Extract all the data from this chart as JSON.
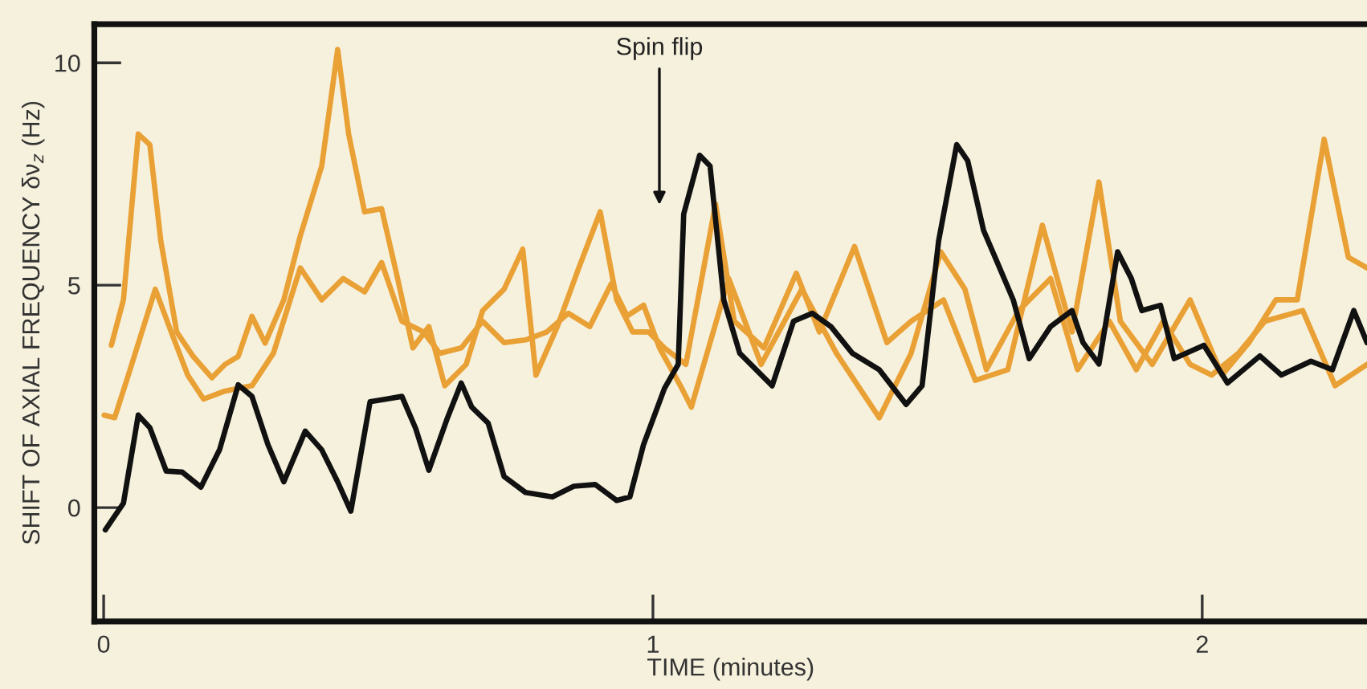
{
  "chart_data": {
    "type": "line",
    "xlabel": "TIME (minutes)",
    "ylabel": "SHIFT OF AXIAL FREQUENCY δν$_{z}$ (Hz)",
    "xlim": [
      -0.017,
      2.3
    ],
    "ylim": [
      -2.56,
      10.87
    ],
    "xticks": [
      0,
      1,
      2
    ],
    "yticks": [
      0,
      5,
      10
    ],
    "grid": false,
    "legend": false,
    "marker": "none",
    "line_style": "solid",
    "annotations": [
      "Spin flip"
    ],
    "series": [
      {
        "color": "#e9a035",
        "x": [
          0.014,
          0.036,
          0.063,
          0.084,
          0.104,
          0.133,
          0.163,
          0.197,
          0.221,
          0.245,
          0.27,
          0.294,
          0.328,
          0.358,
          0.397,
          0.426,
          0.446,
          0.475,
          0.506,
          0.533,
          0.563,
          0.592,
          0.621,
          0.66,
          0.69,
          0.729,
          0.763,
          0.787,
          0.826,
          0.865,
          0.904,
          0.934,
          0.963,
          0.992,
          1.021,
          1.06,
          1.114,
          1.148,
          1.202,
          1.261,
          1.303,
          1.367,
          1.426,
          1.47,
          1.529,
          1.587,
          1.646,
          1.709,
          1.763,
          1.812,
          1.851,
          1.909,
          1.978,
          2.036,
          2.085,
          2.134,
          2.173,
          2.222,
          2.266,
          2.3
        ],
        "values": [
          3.65,
          4.67,
          8.4,
          8.16,
          6.0,
          3.95,
          3.4,
          2.92,
          3.22,
          3.4,
          4.3,
          3.7,
          4.67,
          6.11,
          7.68,
          10.3,
          8.4,
          6.65,
          6.72,
          5.27,
          3.59,
          4.07,
          2.74,
          3.22,
          4.43,
          4.91,
          5.81,
          2.98,
          4.07,
          5.39,
          6.65,
          4.67,
          3.95,
          3.95,
          3.59,
          3.22,
          6.83,
          4.19,
          3.59,
          5.27,
          3.95,
          5.87,
          3.71,
          4.19,
          4.67,
          2.86,
          3.1,
          6.35,
          3.95,
          7.32,
          4.19,
          3.22,
          4.67,
          2.98,
          3.71,
          4.67,
          4.67,
          8.28,
          5.63,
          5.39
        ]
      },
      {
        "color": "#e9a035",
        "x": [
          0.001,
          0.02,
          0.045,
          0.094,
          0.123,
          0.153,
          0.182,
          0.221,
          0.27,
          0.309,
          0.358,
          0.397,
          0.436,
          0.475,
          0.506,
          0.543,
          0.582,
          0.612,
          0.651,
          0.69,
          0.729,
          0.768,
          0.807,
          0.846,
          0.885,
          0.924,
          0.953,
          0.983,
          1.012,
          1.05,
          1.07,
          1.138,
          1.197,
          1.271,
          1.334,
          1.412,
          1.47,
          1.524,
          1.568,
          1.607,
          1.666,
          1.724,
          1.773,
          1.831,
          1.88,
          1.929,
          1.978,
          2.017,
          2.066,
          2.114,
          2.183,
          2.242,
          2.3
        ],
        "values": [
          2.08,
          2.02,
          2.98,
          4.91,
          3.95,
          2.98,
          2.44,
          2.62,
          2.74,
          3.47,
          5.39,
          4.67,
          5.15,
          4.85,
          5.51,
          4.19,
          3.95,
          3.47,
          3.59,
          4.19,
          3.71,
          3.77,
          3.95,
          4.37,
          4.07,
          5.03,
          4.31,
          4.55,
          3.59,
          2.74,
          2.26,
          5.15,
          3.22,
          4.91,
          3.47,
          2.02,
          3.47,
          5.75,
          4.91,
          3.1,
          4.43,
          5.15,
          3.1,
          4.19,
          3.1,
          4.19,
          3.22,
          2.98,
          3.47,
          4.19,
          4.43,
          2.74,
          3.22
        ]
      },
      {
        "color": "#111111",
        "x": [
          0.003,
          0.036,
          0.063,
          0.084,
          0.114,
          0.143,
          0.177,
          0.211,
          0.245,
          0.27,
          0.299,
          0.328,
          0.367,
          0.397,
          0.426,
          0.45,
          0.485,
          0.514,
          0.543,
          0.568,
          0.592,
          0.626,
          0.651,
          0.67,
          0.7,
          0.729,
          0.768,
          0.817,
          0.856,
          0.895,
          0.934,
          0.958,
          0.983,
          1.021,
          1.046,
          1.056,
          1.085,
          1.104,
          1.129,
          1.158,
          1.217,
          1.256,
          1.29,
          1.324,
          1.363,
          1.412,
          1.461,
          1.49,
          1.52,
          1.553,
          1.573,
          1.602,
          1.627,
          1.656,
          1.685,
          1.724,
          1.763,
          1.783,
          1.812,
          1.846,
          1.871,
          1.89,
          1.924,
          1.949,
          2.003,
          2.046,
          2.105,
          2.144,
          2.198,
          2.237,
          2.276,
          2.3
        ],
        "values": [
          -0.5,
          0.1,
          2.08,
          1.8,
          0.82,
          0.8,
          0.46,
          1.3,
          2.76,
          2.5,
          1.42,
          0.58,
          1.72,
          1.3,
          0.58,
          -0.08,
          2.38,
          2.44,
          2.5,
          1.78,
          0.84,
          2.02,
          2.8,
          2.26,
          1.9,
          0.7,
          0.34,
          0.24,
          0.48,
          0.52,
          0.16,
          0.24,
          1.42,
          2.68,
          3.22,
          6.6,
          7.92,
          7.68,
          4.67,
          3.47,
          2.74,
          4.19,
          4.37,
          4.07,
          3.47,
          3.1,
          2.32,
          2.74,
          5.99,
          8.16,
          7.8,
          6.23,
          5.51,
          4.67,
          3.35,
          4.07,
          4.43,
          3.71,
          3.23,
          5.75,
          5.15,
          4.43,
          4.55,
          3.35,
          3.65,
          2.8,
          3.41,
          2.98,
          3.29,
          3.1,
          4.43,
          3.71
        ]
      }
    ]
  }
}
